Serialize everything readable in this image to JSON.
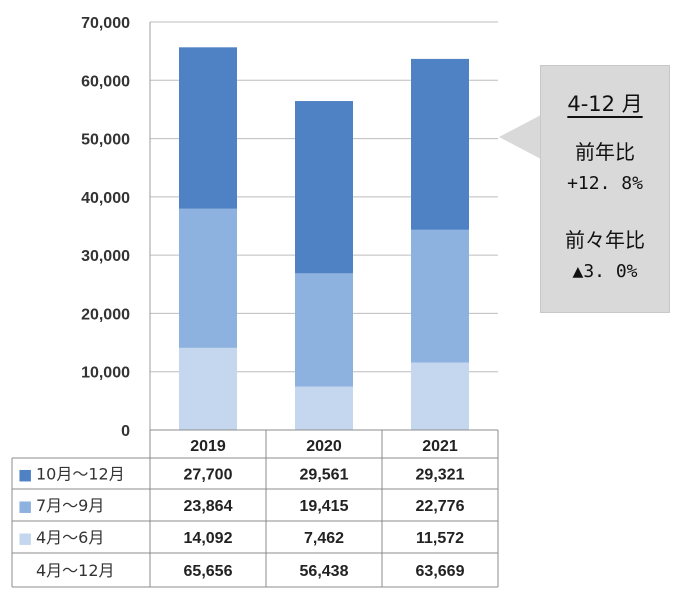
{
  "chart_data": {
    "type": "bar",
    "stacked": true,
    "categories": [
      "2019",
      "2020",
      "2021"
    ],
    "y_ticks": [
      "70,000",
      "60,000",
      "50,000",
      "40,000",
      "30,000",
      "20,000",
      "10,000",
      "0"
    ],
    "ylim": [
      0,
      70000
    ],
    "grid": true,
    "series": [
      {
        "name": "4月～6月",
        "values": [
          14092,
          7462,
          11572
        ],
        "color": "#c5d7ef"
      },
      {
        "name": "7月～9月",
        "values": [
          23864,
          19415,
          22776
        ],
        "color": "#8eb2df"
      },
      {
        "name": "10月～12月",
        "values": [
          27700,
          29561,
          29321
        ],
        "color": "#4f81c5"
      }
    ],
    "table": {
      "rows": [
        {
          "label": "10月～12月",
          "marker": "■",
          "color": "#4f81c5",
          "cells": [
            "27,700",
            "29,561",
            "29,321"
          ]
        },
        {
          "label": "7月～9月",
          "marker": "■",
          "color": "#8eb2df",
          "cells": [
            "23,864",
            "19,415",
            "22,776"
          ]
        },
        {
          "label": "4月～6月",
          "marker": "■",
          "color": "#c5d7ef",
          "cells": [
            "14,092",
            "7,462",
            "11,572"
          ]
        },
        {
          "label": "4月～12月",
          "marker": "",
          "color": "",
          "cells": [
            "65,656",
            "56,438",
            "63,669"
          ]
        }
      ]
    }
  },
  "callout": {
    "period": "4-12 月",
    "yoy_label": "前年比",
    "yoy_value": "+12. 8%",
    "yoy2_label": "前々年比",
    "yoy2_value": "▲3. 0%"
  }
}
